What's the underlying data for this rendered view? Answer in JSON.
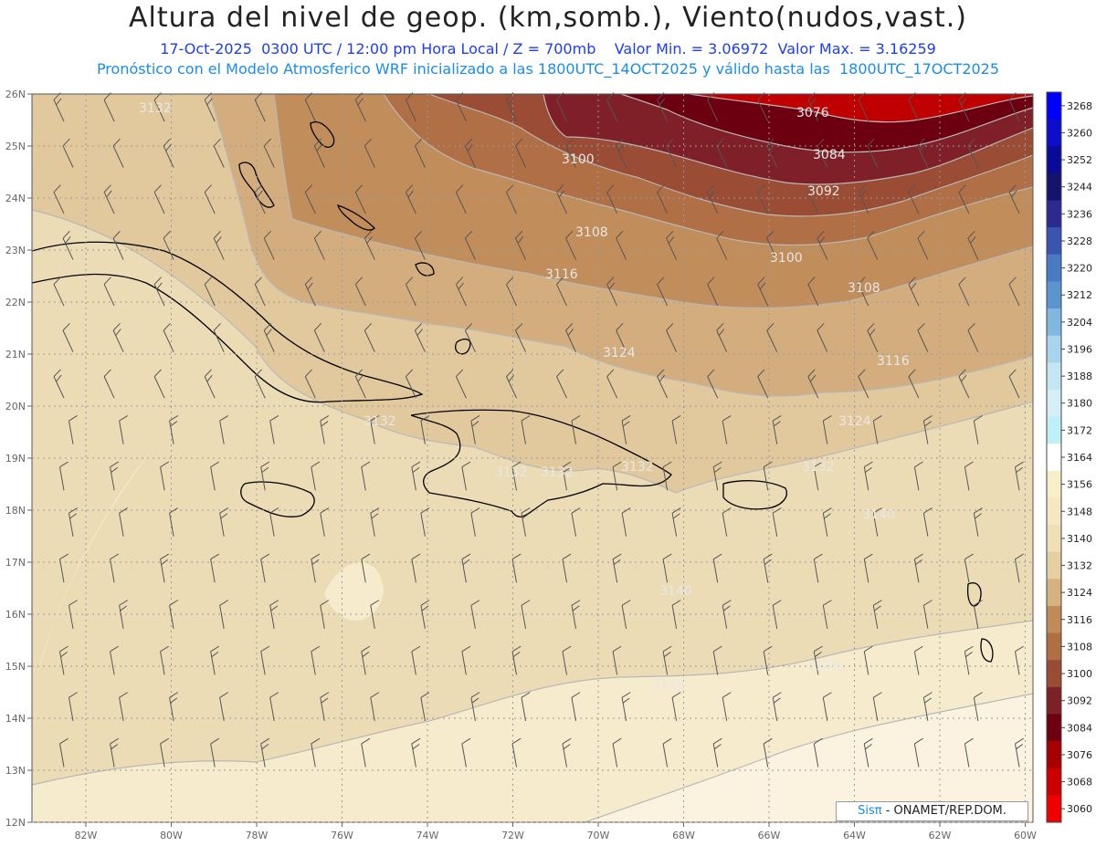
{
  "title": "Altura del nivel de geop. (km,somb.), Viento(nudos,vast.)",
  "subtitle_1": "17-Oct-2025  0300 UTC / 12:00 pm Hora Local / Z = 700mb    Valor Min. = 3.06972  Valor Max. = 3.16259",
  "subtitle_2": "Pronóstico con el Modelo Atmosferico WRF inicializado a las 1800UTC_14OCT2025 y válido hasta las  1800UTC_17OCT2025",
  "credit": {
    "brand": "Sisπ",
    "org": " - ONAMET/REP.DOM."
  },
  "map": {
    "lon_ticks": [
      "82W",
      "80W",
      "78W",
      "76W",
      "74W",
      "72W",
      "70W",
      "68W",
      "66W",
      "64W",
      "62W",
      "60W"
    ],
    "lat_ticks": [
      "26N",
      "25N",
      "24N",
      "23N",
      "22N",
      "21N",
      "20N",
      "19N",
      "18N",
      "17N",
      "16N",
      "15N",
      "14N",
      "13N",
      "12N"
    ],
    "contour_labels": [
      "3076",
      "3084",
      "3092",
      "3100",
      "3100",
      "3108",
      "3108",
      "3116",
      "3116",
      "3124",
      "3124",
      "3132",
      "3132",
      "3132",
      "3132",
      "3140",
      "3140",
      "3148",
      "3148",
      "3132",
      "3132"
    ],
    "wind_barb_grid": {
      "columns": 20,
      "rows": 15,
      "speed_knots": 10
    }
  },
  "colorbar": {
    "labels": [
      "3268",
      "3260",
      "3252",
      "3244",
      "3236",
      "3228",
      "3220",
      "3212",
      "3204",
      "3196",
      "3188",
      "3180",
      "3172",
      "3164",
      "3156",
      "3148",
      "3140",
      "3132",
      "3124",
      "3116",
      "3108",
      "3100",
      "3092",
      "3084",
      "3076",
      "3068",
      "3060"
    ],
    "colors": [
      "#0000ff",
      "#0d0dcc",
      "#0a0a99",
      "#14146e",
      "#2a2a90",
      "#3a55b0",
      "#4a7ac4",
      "#5a95d0",
      "#80b8e0",
      "#a8d4ec",
      "#c4e6f2",
      "#d4f0f6",
      "#bff0f8",
      "#ffffff",
      "#f7efc7",
      "#f4e7c1",
      "#efdfb7",
      "#e6cfa1",
      "#d6b280",
      "#c08b58",
      "#b06e43",
      "#9a4b34",
      "#7e2027",
      "#6e0012",
      "#a80000",
      "#cc0000",
      "#f00000"
    ]
  },
  "colors": {
    "level_3076": "#c00000",
    "level_3084": "#6e0012",
    "level_3092": "#7e1a26",
    "level_3100": "#9a4b34",
    "level_3108": "#b8794d",
    "level_3116": "#c59462",
    "level_3124": "#d9b587",
    "level_3132": "#e6cfa3",
    "level_3140": "#f1e2bf",
    "level_3148": "#faf0d6"
  }
}
